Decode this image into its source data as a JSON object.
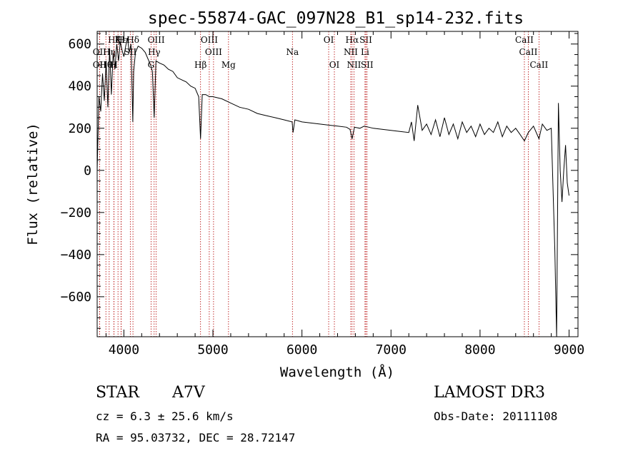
{
  "chart_data": {
    "type": "line",
    "title": "spec-55874-GAC_097N28_B1_sp14-232.fits",
    "xlabel": "Wavelength (Å)",
    "ylabel": "Flux (relative)",
    "xlim": [
      3700,
      9100
    ],
    "ylim": [
      -790,
      660
    ],
    "xticks": [
      4000,
      5000,
      6000,
      7000,
      8000,
      9000
    ],
    "yticks": [
      -600,
      -400,
      -200,
      0,
      200,
      400,
      600
    ],
    "grid": false,
    "series": [
      {
        "name": "flux",
        "x": [
          3700,
          3720,
          3740,
          3760,
          3780,
          3800,
          3820,
          3840,
          3860,
          3880,
          3900,
          3920,
          3940,
          3960,
          3980,
          4000,
          4020,
          4040,
          4060,
          4080,
          4100,
          4110,
          4130,
          4160,
          4200,
          4240,
          4280,
          4300,
          4320,
          4340,
          4360,
          4400,
          4450,
          4500,
          4550,
          4600,
          4650,
          4700,
          4750,
          4800,
          4840,
          4861,
          4880,
          4920,
          4960,
          5000,
          5100,
          5200,
          5300,
          5400,
          5500,
          5600,
          5700,
          5800,
          5890,
          5900,
          5920,
          6000,
          6100,
          6200,
          6300,
          6400,
          6500,
          6540,
          6563,
          6590,
          6650,
          6700,
          6800,
          6900,
          7000,
          7100,
          7200,
          7230,
          7260,
          7300,
          7350,
          7400,
          7450,
          7500,
          7550,
          7600,
          7650,
          7700,
          7750,
          7800,
          7850,
          7900,
          7950,
          8000,
          8050,
          8100,
          8150,
          8200,
          8250,
          8300,
          8350,
          8400,
          8450,
          8498,
          8542,
          8600,
          8662,
          8700,
          8750,
          8800,
          8840,
          8860,
          8880,
          8900,
          8920,
          8940,
          8960,
          8980,
          9000
        ],
        "y": [
          0,
          350,
          280,
          460,
          330,
          520,
          300,
          580,
          360,
          560,
          480,
          600,
          520,
          610,
          570,
          540,
          590,
          630,
          560,
          600,
          230,
          470,
          560,
          590,
          580,
          560,
          520,
          500,
          470,
          250,
          520,
          510,
          500,
          480,
          470,
          440,
          430,
          420,
          400,
          390,
          350,
          150,
          360,
          360,
          350,
          350,
          340,
          320,
          300,
          290,
          270,
          260,
          250,
          240,
          230,
          180,
          240,
          230,
          225,
          220,
          215,
          210,
          205,
          195,
          150,
          205,
          200,
          210,
          200,
          195,
          190,
          185,
          180,
          230,
          140,
          310,
          190,
          220,
          170,
          240,
          160,
          250,
          170,
          220,
          150,
          230,
          180,
          210,
          160,
          220,
          170,
          200,
          180,
          230,
          160,
          210,
          180,
          200,
          170,
          140,
          180,
          210,
          150,
          220,
          190,
          200,
          -380,
          -790,
          320,
          0,
          -150,
          0,
          120,
          -60,
          -120
        ]
      }
    ],
    "lines": [
      {
        "name": "Hδ",
        "x": 4102,
        "row": 1
      },
      {
        "name": "K",
        "x": 3934,
        "row": 1
      },
      {
        "name": "H",
        "x": 3969,
        "row": 1
      },
      {
        "name": "Hζ",
        "x": 3889,
        "row": 1
      },
      {
        "name": "Hε",
        "x": 3970,
        "row": 1
      },
      {
        "name": "OII",
        "x": 3727,
        "row": 2
      },
      {
        "name": "Hη",
        "x": 3835,
        "row": 2
      },
      {
        "name": "SII",
        "x": 4072,
        "row": 2
      },
      {
        "name": "OII",
        "x": 3727,
        "row": 3
      },
      {
        "name": "Hθ",
        "x": 3798,
        "row": 3
      },
      {
        "name": "H",
        "x": 3889,
        "row": 3
      },
      {
        "name": "OIII",
        "x": 4363,
        "row": 1
      },
      {
        "name": "Hγ",
        "x": 4340,
        "row": 2
      },
      {
        "name": "G",
        "x": 4305,
        "row": 3
      },
      {
        "name": "OIII",
        "x": 4959,
        "row": 1
      },
      {
        "name": "OIII",
        "x": 5007,
        "row": 2
      },
      {
        "name": "Hβ",
        "x": 4861,
        "row": 3
      },
      {
        "name": "Mg",
        "x": 5175,
        "row": 3
      },
      {
        "name": "Na",
        "x": 5893,
        "row": 2
      },
      {
        "name": "OI",
        "x": 6300,
        "row": 1
      },
      {
        "name": "OI",
        "x": 6364,
        "row": 3
      },
      {
        "name": "Hα",
        "x": 6563,
        "row": 1
      },
      {
        "name": "NII",
        "x": 6548,
        "row": 2
      },
      {
        "name": "NII",
        "x": 6584,
        "row": 3
      },
      {
        "name": "SII",
        "x": 6717,
        "row": 1
      },
      {
        "name": "Li",
        "x": 6708,
        "row": 2
      },
      {
        "name": "SII",
        "x": 6731,
        "row": 3
      },
      {
        "name": "CaII",
        "x": 8498,
        "row": 1
      },
      {
        "name": "CaII",
        "x": 8542,
        "row": 2
      },
      {
        "name": "CaII",
        "x": 8662,
        "row": 3
      }
    ],
    "line_color": "#b40000"
  },
  "info": {
    "object_type": "STAR",
    "subclass": "A7V",
    "survey": "LAMOST DR3",
    "cz": "cz = 6.3 ± 25.6 km/s",
    "obs_date": "Obs-Date: 20111108",
    "coords": "RA =  95.03732, DEC =  28.72147"
  }
}
